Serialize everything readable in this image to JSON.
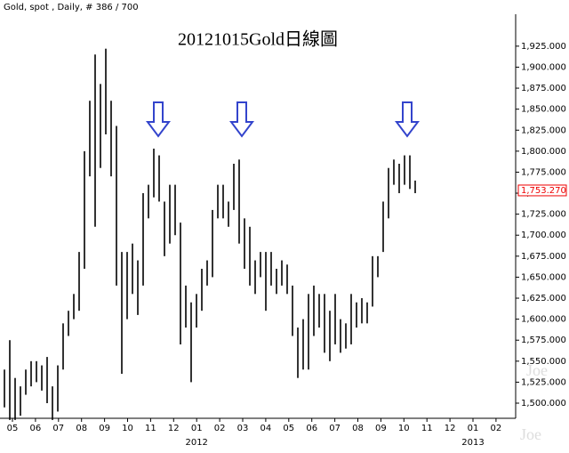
{
  "chart_data": {
    "type": "range-bar",
    "header": "Gold, spot , Daily, # 386 / 700",
    "title": "20121015Gold日線圖",
    "watermark": "Joe",
    "categories": [
      "05",
      "06",
      "07",
      "08",
      "09",
      "10",
      "11",
      "12",
      "01",
      "02",
      "03",
      "04",
      "05",
      "06",
      "07",
      "08",
      "09",
      "10",
      "11",
      "12",
      "01",
      "02"
    ],
    "year_labels": [
      null,
      null,
      null,
      null,
      null,
      null,
      null,
      null,
      "2012",
      null,
      null,
      null,
      null,
      null,
      null,
      null,
      null,
      null,
      null,
      null,
      "2013",
      null
    ],
    "high": [
      1540,
      1575,
      1530,
      1520,
      1540,
      1550,
      1550,
      1545,
      1555,
      1520,
      1545,
      1595,
      1610,
      1630,
      1680,
      1800,
      1860,
      1915,
      1880,
      1922,
      1860,
      1830,
      1680,
      1680,
      1690,
      1670,
      1750,
      1760,
      1803,
      1795,
      1740,
      1760,
      1760,
      1715,
      1640,
      1620,
      1630,
      1660,
      1670,
      1730,
      1760,
      1760,
      1740,
      1785,
      1790,
      1720,
      1710,
      1670,
      1680,
      1680,
      1680,
      1660,
      1670,
      1665,
      1640,
      1590,
      1600,
      1630,
      1640,
      1630,
      1630,
      1610,
      1630,
      1600,
      1595,
      1630,
      1620,
      1625,
      1620,
      1675,
      1675,
      1740,
      1780,
      1790,
      1785,
      1795,
      1795,
      1765
    ],
    "low": [
      1495,
      1480,
      1480,
      1485,
      1510,
      1520,
      1525,
      1515,
      1500,
      1480,
      1490,
      1540,
      1580,
      1600,
      1610,
      1660,
      1770,
      1710,
      1780,
      1820,
      1770,
      1640,
      1535,
      1600,
      1630,
      1605,
      1640,
      1720,
      1745,
      1740,
      1675,
      1690,
      1700,
      1570,
      1590,
      1525,
      1590,
      1610,
      1640,
      1650,
      1720,
      1720,
      1710,
      1730,
      1690,
      1660,
      1640,
      1630,
      1650,
      1610,
      1640,
      1630,
      1640,
      1630,
      1580,
      1530,
      1540,
      1540,
      1580,
      1590,
      1560,
      1550,
      1570,
      1560,
      1565,
      1570,
      1590,
      1595,
      1595,
      1615,
      1650,
      1680,
      1720,
      1760,
      1750,
      1760,
      1755,
      1750
    ],
    "color": "#000000",
    "last": {
      "value": 1753.27,
      "label": "1,753.270"
    },
    "ylim": [
      1482,
      1963
    ],
    "yticks": [
      {
        "value": 1500,
        "label": "1,500.000"
      },
      {
        "value": 1525,
        "label": "1,525.000"
      },
      {
        "value": 1550,
        "label": "1,550.000"
      },
      {
        "value": 1575,
        "label": "1,575.000"
      },
      {
        "value": 1600,
        "label": "1,600.000"
      },
      {
        "value": 1625,
        "label": "1,625.000"
      },
      {
        "value": 1650,
        "label": "1,650.000"
      },
      {
        "value": 1675,
        "label": "1,675.000"
      },
      {
        "value": 1700,
        "label": "1,700.000"
      },
      {
        "value": 1725,
        "label": "1,725.000"
      },
      {
        "value": 1750,
        "label": "1,750.000"
      },
      {
        "value": 1775,
        "label": "1,775.000"
      },
      {
        "value": 1800,
        "label": "1,800.000"
      },
      {
        "value": 1825,
        "label": "1,825.000"
      },
      {
        "value": 1850,
        "label": "1,850.000"
      },
      {
        "value": 1875,
        "label": "1,875.000"
      },
      {
        "value": 1900,
        "label": "1,900.000"
      },
      {
        "value": 1925,
        "label": "1,925.000"
      }
    ]
  }
}
